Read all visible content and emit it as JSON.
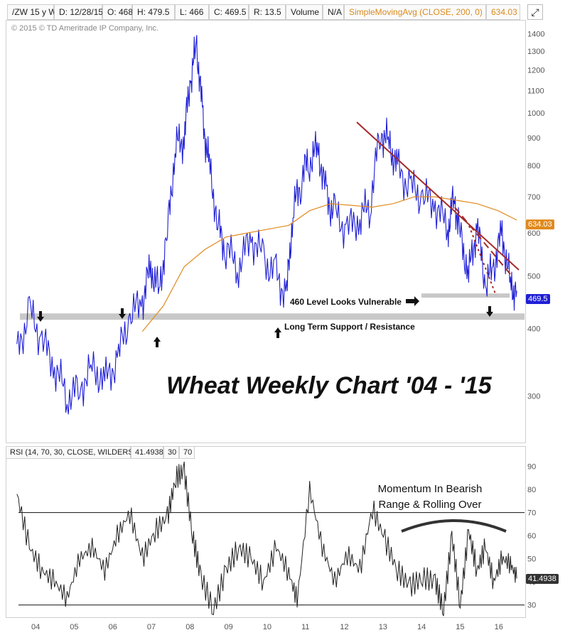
{
  "header": {
    "symbol": "/ZW 15 y W",
    "date": "D: 12/28/15",
    "open": "O: 468",
    "high": "H: 479.5",
    "low": "L: 466",
    "close": "C: 469.5",
    "range": "R: 13.5",
    "volume": "Volume",
    "na": "N/A",
    "sma": "SimpleMovingAvg (CLOSE, 200, 0)",
    "sma_value": "634.03"
  },
  "copyright": "© 2015 © TD Ameritrade IP Company, Inc.",
  "price_tags": {
    "sma": "634.03",
    "last": "469.5"
  },
  "rsi_header": {
    "label": "RSI (14, 70, 30, CLOSE, WILDERS)",
    "value": "41.4938",
    "low": "30",
    "high": "70"
  },
  "rsi_tag": "41.4938",
  "annotations": {
    "vulnerable": "460 Level Looks Vulnerable",
    "support": "Long Term Support / Resistance",
    "title": "Wheat Weekly Chart '04 - '15",
    "momentum_1": "Momentum In Bearish",
    "momentum_2": "Range & Rolling Over"
  },
  "colors": {
    "price": "#1f1fd6",
    "sma": "#e08a1e",
    "trend": "#a52a2a",
    "support": "#c8c8c8",
    "rsi": "#222222",
    "rsi_high": "#a52a2a",
    "rsi_low": "#2e9a2e"
  },
  "chart_data": {
    "type": "line",
    "title": "Wheat Weekly Chart '04 - '15",
    "x_ticks": [
      "04",
      "05",
      "06",
      "07",
      "08",
      "09",
      "10",
      "11",
      "12",
      "13",
      "14",
      "15",
      "16"
    ],
    "y_ticks": [
      300,
      400,
      500,
      600,
      700,
      800,
      900,
      1000,
      1100,
      1200,
      1300,
      1400
    ],
    "y_scale": "log",
    "ylim": [
      250,
      1450
    ],
    "series": [
      {
        "name": "/ZW",
        "x": [
          2004.0,
          2004.3,
          2004.6,
          2004.9,
          2005.2,
          2005.5,
          2005.8,
          2006.1,
          2006.4,
          2006.7,
          2007.0,
          2007.2,
          2007.4,
          2007.6,
          2007.8,
          2008.0,
          2008.15,
          2008.3,
          2008.45,
          2008.6,
          2008.8,
          2009.0,
          2009.3,
          2009.6,
          2009.9,
          2010.2,
          2010.45,
          2010.6,
          2010.8,
          2011.0,
          2011.2,
          2011.4,
          2011.6,
          2011.9,
          2012.2,
          2012.45,
          2012.7,
          2012.9,
          2013.1,
          2013.4,
          2013.7,
          2014.0,
          2014.3,
          2014.45,
          2014.6,
          2014.8,
          2015.0,
          2015.2,
          2015.4,
          2015.6,
          2015.8,
          2015.95
        ],
        "values": [
          360,
          430,
          380,
          340,
          300,
          310,
          340,
          320,
          350,
          420,
          450,
          520,
          470,
          600,
          870,
          900,
          1150,
          1330,
          960,
          800,
          620,
          560,
          520,
          590,
          540,
          500,
          460,
          650,
          760,
          820,
          860,
          700,
          650,
          610,
          640,
          680,
          930,
          880,
          790,
          730,
          700,
          680,
          610,
          700,
          600,
          500,
          620,
          480,
          520,
          600,
          480,
          469.5
        ]
      },
      {
        "name": "SimpleMovingAvg (CLOSE, 200, 0)",
        "x": [
          2007.0,
          2007.5,
          2008.0,
          2008.5,
          2009.0,
          2009.5,
          2010.0,
          2010.5,
          2011.0,
          2011.5,
          2012.0,
          2012.5,
          2013.0,
          2013.5,
          2014.0,
          2014.5,
          2015.0,
          2015.5,
          2015.95
        ],
        "values": [
          395,
          440,
          520,
          560,
          590,
          600,
          610,
          620,
          660,
          680,
          675,
          670,
          680,
          700,
          700,
          690,
          680,
          660,
          634.03
        ]
      }
    ],
    "rsi": {
      "name": "RSI (14, 70, 30, CLOSE, WILDERS)",
      "levels": [
        30,
        70
      ],
      "ylim": [
        25,
        92
      ],
      "y_ticks": [
        30,
        40,
        50,
        60,
        70,
        80,
        90
      ],
      "x": [
        2004.0,
        2004.3,
        2004.6,
        2004.9,
        2005.2,
        2005.5,
        2005.8,
        2006.1,
        2006.4,
        2006.7,
        2007.0,
        2007.3,
        2007.6,
        2007.8,
        2008.0,
        2008.2,
        2008.4,
        2008.7,
        2009.0,
        2009.3,
        2009.6,
        2009.9,
        2010.2,
        2010.5,
        2010.7,
        2011.0,
        2011.3,
        2011.6,
        2011.9,
        2012.2,
        2012.5,
        2012.8,
        2013.1,
        2013.4,
        2013.7,
        2014.0,
        2014.2,
        2014.4,
        2014.6,
        2014.8,
        2015.0,
        2015.2,
        2015.4,
        2015.6,
        2015.8,
        2015.95
      ],
      "values": [
        78,
        55,
        45,
        40,
        33,
        50,
        55,
        45,
        60,
        70,
        50,
        62,
        68,
        85,
        88,
        60,
        42,
        28,
        45,
        55,
        50,
        40,
        55,
        44,
        32,
        80,
        55,
        40,
        52,
        45,
        72,
        58,
        45,
        38,
        42,
        40,
        28,
        60,
        30,
        62,
        45,
        55,
        40,
        50,
        48,
        41.4938
      ]
    },
    "support_level": 420,
    "vulnerable_level": 460
  }
}
